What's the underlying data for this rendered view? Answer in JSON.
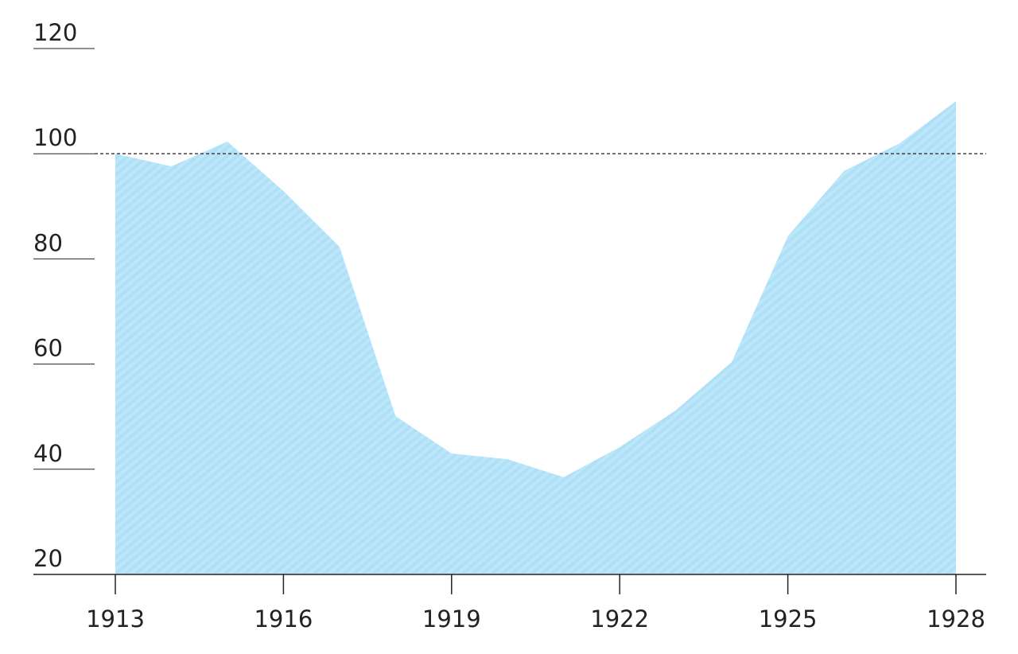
{
  "chart_data": {
    "type": "area",
    "x": [
      1913,
      1914,
      1915,
      1916,
      1917,
      1918,
      1919,
      1920,
      1921,
      1922,
      1923,
      1924,
      1925,
      1926,
      1927,
      1928
    ],
    "values": [
      100,
      97.6,
      102.3,
      92.9,
      82.3,
      50.1,
      43.0,
      41.9,
      38.5,
      44.2,
      51.2,
      60.4,
      84.3,
      96.7,
      102.0,
      110.0
    ],
    "color": "#aee0f8",
    "xlim": [
      1913,
      1928
    ],
    "xticks": [
      1913,
      1916,
      1919,
      1922,
      1925,
      1928
    ],
    "ylim": [
      20,
      120
    ],
    "yticks": [
      20,
      40,
      60,
      80,
      100,
      120
    ],
    "reference_line": 100
  }
}
